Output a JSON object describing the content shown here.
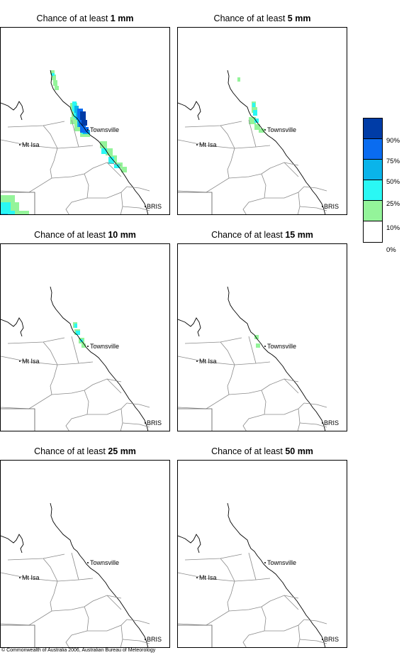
{
  "panels": [
    {
      "prefix": "Chance of at least ",
      "value": "1 mm",
      "has_labels": true,
      "ocean_label": "BRIS"
    },
    {
      "prefix": "Chance of at least ",
      "value": "5 mm",
      "has_labels": true,
      "ocean_label": "BRIS"
    },
    {
      "prefix": "Chance of at least ",
      "value": "10 mm",
      "has_labels": true,
      "ocean_label": "BRIS"
    },
    {
      "prefix": "Chance of at least ",
      "value": "15 mm",
      "has_labels": true,
      "ocean_label": "BRIS"
    },
    {
      "prefix": "Chance of at least ",
      "value": "25 mm",
      "has_labels": true,
      "ocean_label": "BRIS"
    },
    {
      "prefix": "Chance of at least ",
      "value": "50 mm",
      "has_labels": true,
      "ocean_label": "BRIS"
    }
  ],
  "places": {
    "townsville": "Townsville",
    "mt_isa": "Mt Isa",
    "brisbane": "BRIS"
  },
  "legend": {
    "items": [
      {
        "label": "90%",
        "color": "#003ca6"
      },
      {
        "label": "75%",
        "color": "#0a6cf0"
      },
      {
        "label": "50%",
        "color": "#0ab4ea"
      },
      {
        "label": "25%",
        "color": "#2af8f4"
      },
      {
        "label": "10%",
        "color": "#94f49a"
      },
      {
        "label": "0%",
        "color": "#ffffff"
      }
    ]
  },
  "copyright": "© Commonwealth of Australia 2006, Australian Bureau of Meteorology"
}
